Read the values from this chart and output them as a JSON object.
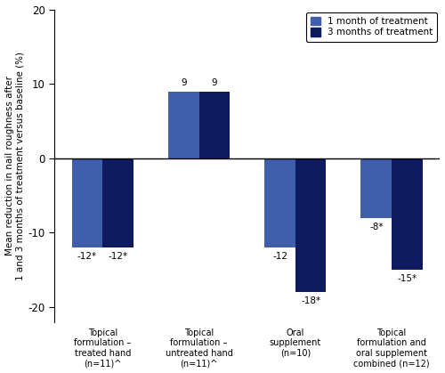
{
  "categories": [
    "Topical\nformulation –\ntreated hand\n(n=11)^",
    "Topical\nformulation –\nuntreated hand\n(n=11)^",
    "Oral\nsupplement\n(n=10)",
    "Topical\nformulation and\noral supplement\ncombined (n=12)"
  ],
  "values_1month": [
    -12,
    9,
    -12,
    -8
  ],
  "values_3month": [
    -12,
    9,
    -18,
    -15
  ],
  "labels_1month": [
    "-12*",
    "9",
    "-12",
    "-8*"
  ],
  "labels_3month": [
    "-12*",
    "9",
    "-18*",
    "-15*"
  ],
  "color_1month": "#3F5FAA",
  "color_3month": "#0D1B5E",
  "ylim": [
    -22,
    20
  ],
  "yticks": [
    -20,
    -10,
    0,
    10,
    20
  ],
  "ytick_labels": [
    "-20",
    "-10",
    "0",
    "10",
    "20"
  ],
  "ylabel": "Mean reduction in nail roughness after\n1 and 3 months of treatment versus baseline (%)",
  "legend_1month": "1 month of treatment",
  "legend_3month": "3 months of treatment",
  "bar_width": 0.32,
  "group_positions": [
    0,
    1,
    2,
    3
  ]
}
